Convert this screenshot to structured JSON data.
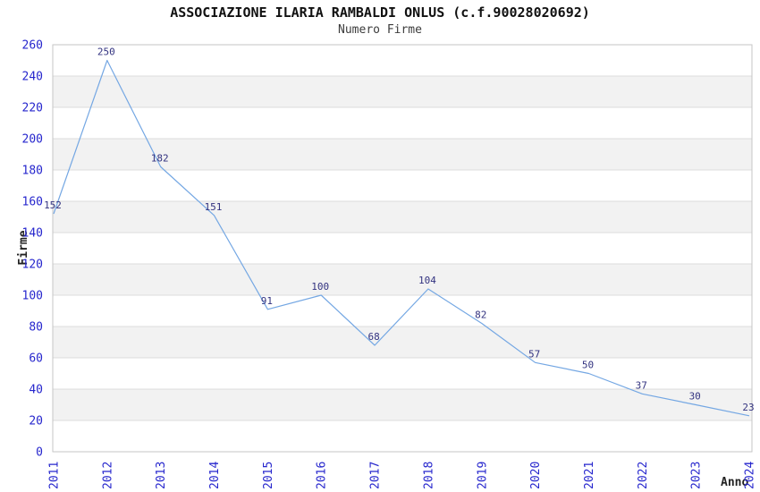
{
  "chart_data": {
    "type": "line",
    "title": "ASSOCIAZIONE ILARIA RAMBALDI ONLUS (c.f.90028020692)",
    "subtitle": "Numero Firme",
    "xlabel": "Anno",
    "ylabel": "Firme",
    "categories": [
      "2011",
      "2012",
      "2013",
      "2014",
      "2015",
      "2016",
      "2017",
      "2018",
      "2019",
      "2020",
      "2021",
      "2022",
      "2023",
      "2024"
    ],
    "values": [
      152,
      250,
      182,
      151,
      91,
      100,
      68,
      104,
      82,
      57,
      50,
      37,
      30,
      23
    ],
    "ylim": [
      0,
      260
    ],
    "yticks": [
      0,
      20,
      40,
      60,
      80,
      100,
      120,
      140,
      160,
      180,
      200,
      220,
      240,
      260
    ],
    "grid": true,
    "legend": "none",
    "colors": {
      "line": "#74a7e3",
      "tick_labels": "#2626cd",
      "value_labels": "#333380",
      "band": "#f2f2f2",
      "grid_line": "#dcdcdc",
      "plot_border": "#c6c6c6",
      "title": "#111111",
      "subtitle": "#3c3c3c",
      "axis_titles": "#222222"
    }
  }
}
